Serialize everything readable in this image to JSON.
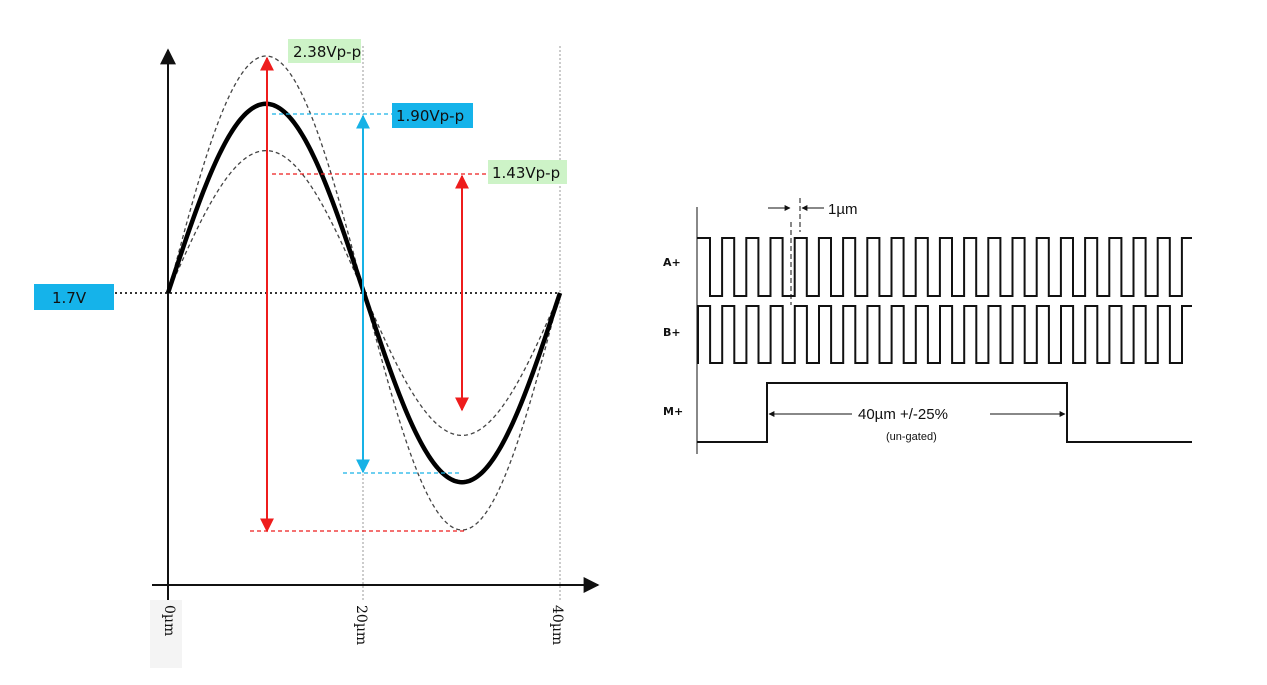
{
  "colors": {
    "red": "#ee1c1c",
    "blue": "#17b2e6",
    "green_bg": "#cdf3c7",
    "blue_bg": "#15b3ea"
  },
  "sine_chart": {
    "offset_label": "1.7V",
    "amplitude_labels": {
      "max": "2.38Vp-p",
      "nominal": "1.90Vp-p",
      "min": "1.43Vp-p"
    },
    "x_ticks": [
      "0µm",
      "20µm",
      "40µm"
    ],
    "x_values": [
      0,
      20,
      40
    ],
    "peak_to_peak_volts": {
      "max": 2.38,
      "nominal": 1.9,
      "min": 1.43
    },
    "offset_volts": 1.7
  },
  "quadrature_diagram": {
    "signals": [
      "A+",
      "B+",
      "M+"
    ],
    "period_note": "1µm",
    "index_width_label": "40µm +/-25%",
    "index_note": "(un-gated)"
  }
}
